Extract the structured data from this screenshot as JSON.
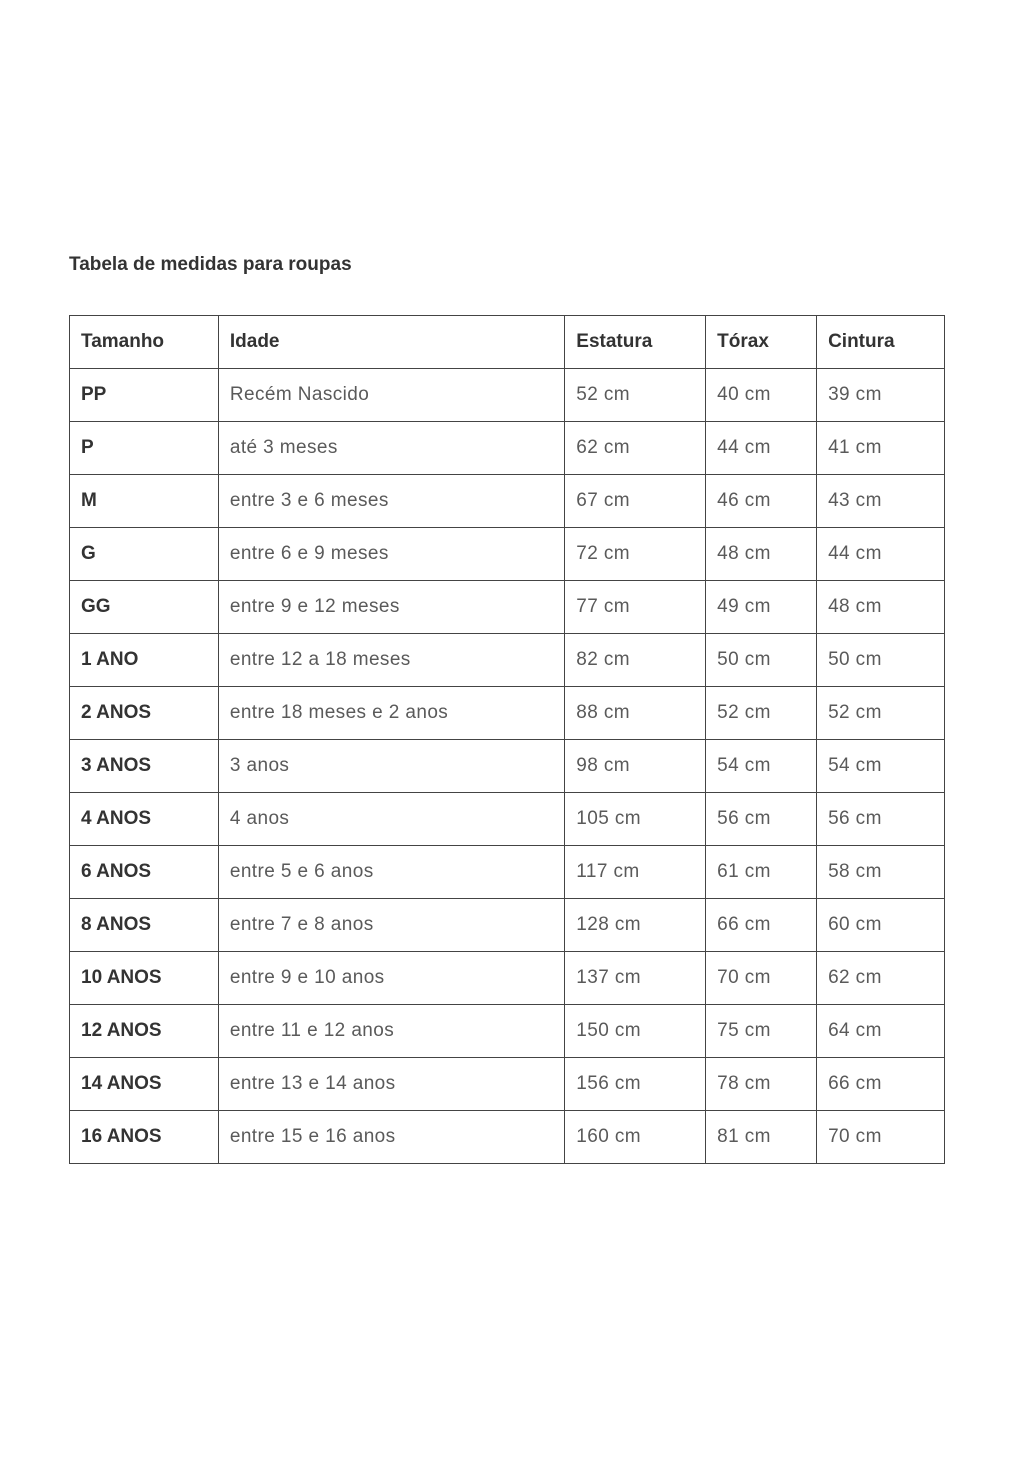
{
  "title": "Tabela de medidas para roupas",
  "table": {
    "headers": [
      "Tamanho",
      "Idade",
      "Estatura",
      "Tórax",
      "Cintura"
    ],
    "rows": [
      [
        "PP",
        "Recém Nascido",
        "52 cm",
        "40 cm",
        "39 cm"
      ],
      [
        "P",
        "até 3 meses",
        "62 cm",
        "44 cm",
        "41 cm"
      ],
      [
        "M",
        "entre 3 e 6 meses",
        "67 cm",
        "46 cm",
        "43 cm"
      ],
      [
        "G",
        "entre 6 e 9 meses",
        "72 cm",
        "48 cm",
        "44 cm"
      ],
      [
        "GG",
        "entre 9 e 12 meses",
        "77 cm",
        "49 cm",
        "48 cm"
      ],
      [
        "1 ANO",
        "entre 12 a 18 meses",
        "82 cm",
        "50 cm",
        "50 cm"
      ],
      [
        "2 ANOS",
        "entre 18 meses e 2 anos",
        "88 cm",
        "52 cm",
        "52 cm"
      ],
      [
        "3 ANOS",
        "3 anos",
        "98 cm",
        "54 cm",
        "54 cm"
      ],
      [
        "4 ANOS",
        "4 anos",
        "105 cm",
        "56 cm",
        "56 cm"
      ],
      [
        "6 ANOS",
        "entre 5 e 6 anos",
        "117 cm",
        "61 cm",
        "58 cm"
      ],
      [
        "8 ANOS",
        "entre 7 e 8 anos",
        "128 cm",
        "66 cm",
        "60 cm"
      ],
      [
        "10 ANOS",
        "entre 9 e 10 anos",
        "137 cm",
        "70 cm",
        "62 cm"
      ],
      [
        "12 ANOS",
        "entre 11 e 12 anos",
        "150 cm",
        "75 cm",
        "64 cm"
      ],
      [
        "14 ANOS",
        "entre 13 e 14 anos",
        "156 cm",
        "78 cm",
        "66 cm"
      ],
      [
        "16 ANOS",
        "entre 15 e 16 anos",
        "160 cm",
        "81 cm",
        "70 cm"
      ]
    ]
  }
}
